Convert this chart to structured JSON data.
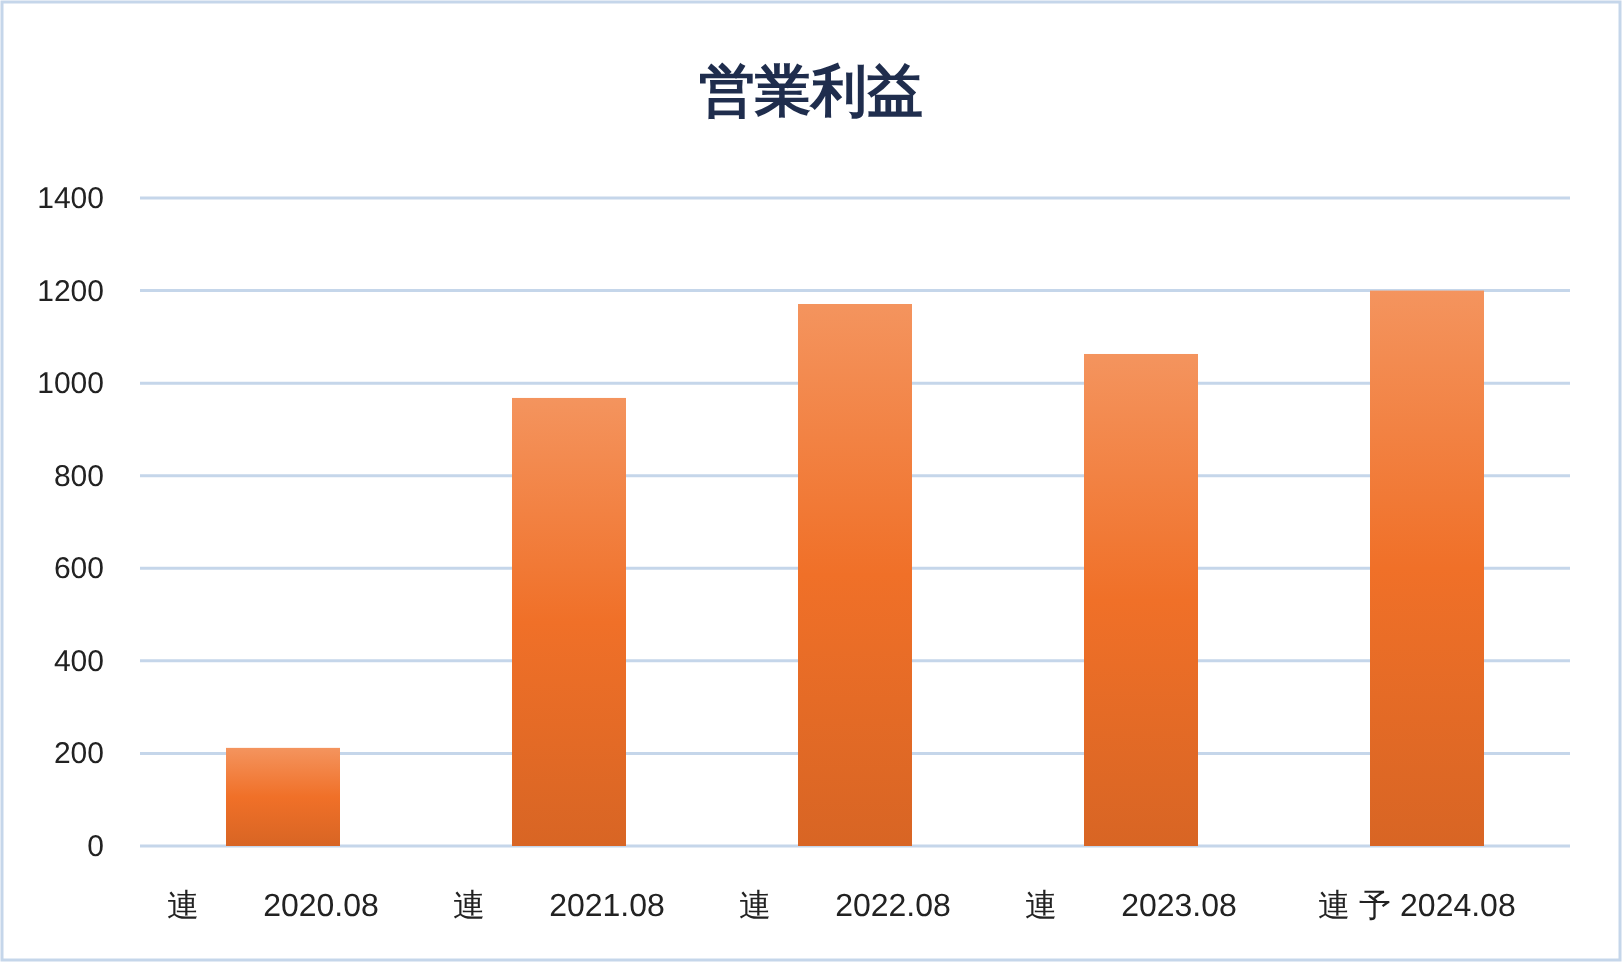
{
  "chart_data": {
    "type": "bar",
    "title": "営業利益",
    "categories": [
      "連　　2020.08",
      "連　　2021.08",
      "連　　2022.08",
      "連　　2023.08",
      "連 予 2024.08"
    ],
    "values": [
      212,
      968,
      1171,
      1063,
      1200
    ],
    "color": "#f07028",
    "ylim": [
      0,
      1400
    ],
    "yticks": [
      0,
      200,
      400,
      600,
      800,
      1000,
      1200,
      1400
    ],
    "grid": "y"
  }
}
